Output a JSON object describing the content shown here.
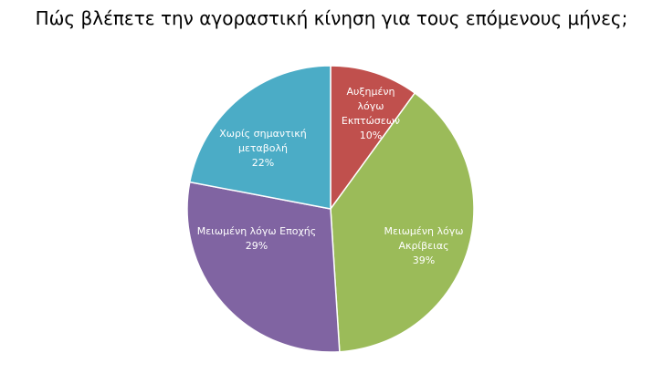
{
  "chart_data": {
    "type": "pie",
    "title": "Πώς βλέπετε την αγοραστική κίνηση για τους επόμενους μήνες;",
    "slices": [
      {
        "label_lines": [
          "Αυξημένη",
          "λόγω",
          "Εκπτώσεων"
        ],
        "percent_label": "10%",
        "value": 10,
        "color": "#C0504D"
      },
      {
        "label_lines": [
          "Μειωμένη λόγω",
          "Ακρίβειας"
        ],
        "percent_label": "39%",
        "value": 39,
        "color": "#9BBB59"
      },
      {
        "label_lines": [
          "Μειωμένη λόγω Εποχής"
        ],
        "percent_label": "29%",
        "value": 29,
        "color": "#8064A2"
      },
      {
        "label_lines": [
          "Χωρίς σημαντική",
          "μεταβολή"
        ],
        "percent_label": "22%",
        "value": 22,
        "color": "#4BACC6"
      }
    ]
  }
}
